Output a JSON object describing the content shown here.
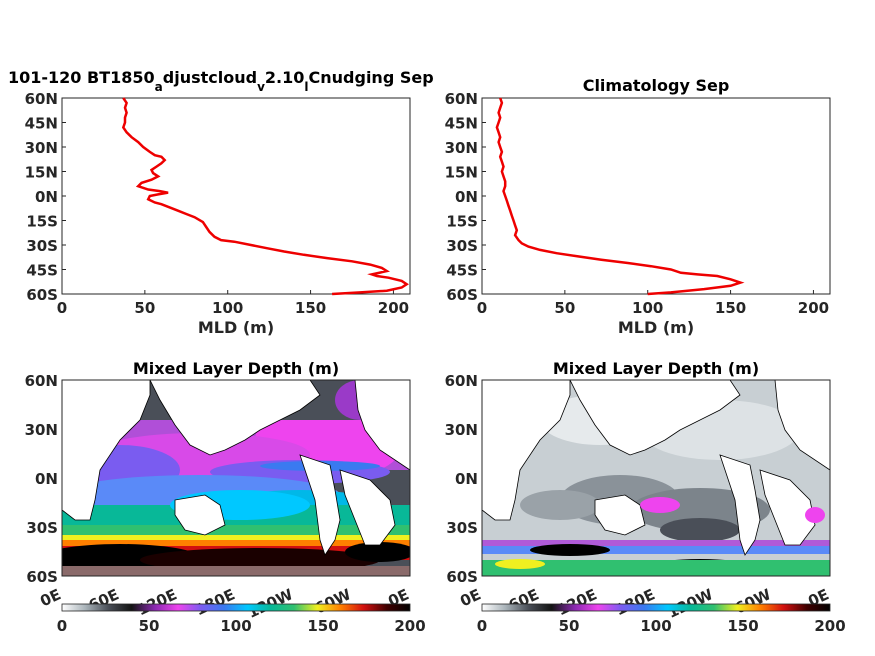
{
  "chart_data": [
    {
      "type": "line",
      "title": "101-120 BT1850",
      "title_sub1": "a",
      "title_mid": "djustcloud",
      "title_sub2": "v",
      "title_mid2": "2.10",
      "title_sub3": "l",
      "title_end": "Cnudging Sep",
      "xlabel": "MLD (m)",
      "ylabel": "",
      "xlim": [
        0,
        210
      ],
      "ylim": [
        -60,
        60
      ],
      "xticks": [
        0,
        50,
        100,
        150,
        200
      ],
      "yticks": [
        "60N",
        "45N",
        "30N",
        "15N",
        "0N",
        "15S",
        "30S",
        "45S",
        "60S"
      ],
      "grid": false,
      "series": [
        {
          "color": "#ee0000",
          "points": [
            [
              37,
              60
            ],
            [
              39,
              57
            ],
            [
              38,
              54
            ],
            [
              39,
              51
            ],
            [
              38,
              48
            ],
            [
              38,
              45
            ],
            [
              37,
              42
            ],
            [
              39,
              39
            ],
            [
              42,
              36
            ],
            [
              46,
              33
            ],
            [
              49,
              30
            ],
            [
              53,
              27
            ],
            [
              56,
              25
            ],
            [
              60,
              24
            ],
            [
              62,
              22
            ],
            [
              60,
              20
            ],
            [
              57,
              18
            ],
            [
              54,
              16
            ],
            [
              55,
              14
            ],
            [
              58,
              12
            ],
            [
              54,
              10
            ],
            [
              48,
              8
            ],
            [
              46,
              6
            ],
            [
              52,
              4
            ],
            [
              59,
              3
            ],
            [
              64,
              2
            ],
            [
              58,
              1
            ],
            [
              53,
              0
            ],
            [
              52,
              -2
            ],
            [
              56,
              -4
            ],
            [
              60,
              -5
            ],
            [
              65,
              -7
            ],
            [
              70,
              -9
            ],
            [
              75,
              -11
            ],
            [
              80,
              -13
            ],
            [
              85,
              -16
            ],
            [
              87,
              -19
            ],
            [
              89,
              -22
            ],
            [
              92,
              -25
            ],
            [
              96,
              -27
            ],
            [
              104,
              -28
            ],
            [
              114,
              -30
            ],
            [
              124,
              -32
            ],
            [
              134,
              -34
            ],
            [
              146,
              -36
            ],
            [
              160,
              -38
            ],
            [
              175,
              -40
            ],
            [
              186,
              -42
            ],
            [
              193,
              -44
            ],
            [
              196,
              -46
            ],
            [
              187,
              -48
            ],
            [
              190,
              -49
            ],
            [
              197,
              -50
            ],
            [
              205,
              -52
            ],
            [
              208,
              -54
            ],
            [
              205,
              -56
            ],
            [
              196,
              -58
            ],
            [
              180,
              -59
            ],
            [
              163,
              -60
            ]
          ]
        }
      ]
    },
    {
      "type": "line",
      "title": "Climatology Sep",
      "xlabel": "MLD (m)",
      "ylabel": "",
      "xlim": [
        0,
        210
      ],
      "ylim": [
        -60,
        60
      ],
      "xticks": [
        0,
        50,
        100,
        150,
        200
      ],
      "yticks": [
        "60N",
        "45N",
        "30N",
        "15N",
        "0N",
        "15S",
        "30S",
        "45S",
        "60S"
      ],
      "grid": false,
      "series": [
        {
          "color": "#ee0000",
          "points": [
            [
              11,
              60
            ],
            [
              12,
              57
            ],
            [
              11,
              54
            ],
            [
              10,
              51
            ],
            [
              11,
              48
            ],
            [
              10,
              45
            ],
            [
              9,
              42
            ],
            [
              10,
              39
            ],
            [
              11,
              36
            ],
            [
              10,
              33
            ],
            [
              11,
              30
            ],
            [
              12,
              27
            ],
            [
              11,
              24
            ],
            [
              12,
              21
            ],
            [
              13,
              18
            ],
            [
              12,
              15
            ],
            [
              13,
              12
            ],
            [
              14,
              9
            ],
            [
              14,
              6
            ],
            [
              13,
              3
            ],
            [
              14,
              0
            ],
            [
              15,
              -3
            ],
            [
              16,
              -6
            ],
            [
              17,
              -9
            ],
            [
              18,
              -12
            ],
            [
              19,
              -15
            ],
            [
              20,
              -18
            ],
            [
              21,
              -21
            ],
            [
              20,
              -24
            ],
            [
              22,
              -27
            ],
            [
              24,
              -29
            ],
            [
              28,
              -31
            ],
            [
              35,
              -33
            ],
            [
              45,
              -35
            ],
            [
              58,
              -37
            ],
            [
              72,
              -39
            ],
            [
              88,
              -41
            ],
            [
              102,
              -43
            ],
            [
              114,
              -45
            ],
            [
              120,
              -47
            ],
            [
              130,
              -48
            ],
            [
              142,
              -49
            ],
            [
              150,
              -51
            ],
            [
              156,
              -53
            ],
            [
              150,
              -55
            ],
            [
              134,
              -57
            ],
            [
              114,
              -59
            ],
            [
              100,
              -60
            ]
          ]
        }
      ]
    },
    {
      "type": "heatmap",
      "title": "Mixed Layer Depth (m)",
      "xticks": [
        "0E",
        "60E",
        "120E",
        "180E",
        "120W",
        "60W",
        "0E"
      ],
      "yticks": [
        "60N",
        "30N",
        "0N",
        "30S",
        "60S"
      ],
      "colorbar_ticks": [
        "0",
        "50",
        "100",
        "150",
        "200"
      ],
      "zlim": [
        0,
        200
      ]
    },
    {
      "type": "heatmap",
      "title": "Mixed Layer Depth (m)",
      "xticks": [
        "0E",
        "60E",
        "120E",
        "180E",
        "120W",
        "60W",
        "0E"
      ],
      "yticks": [
        "60N",
        "30N",
        "0N",
        "30S",
        "60S"
      ],
      "colorbar_ticks": [
        "0",
        "50",
        "100",
        "150",
        "200"
      ],
      "zlim": [
        0,
        200
      ]
    }
  ],
  "colors": {
    "line": "#ee0000",
    "colormap": [
      "#ffffff",
      "#aab4ba",
      "#4a4f58",
      "#141414",
      "#8a2ab0",
      "#ee44ee",
      "#7a5cf0",
      "#3a7af0",
      "#00c8ff",
      "#08b898",
      "#30c070",
      "#f0f020",
      "#ff8000",
      "#d21010",
      "#400000",
      "#000000"
    ]
  }
}
